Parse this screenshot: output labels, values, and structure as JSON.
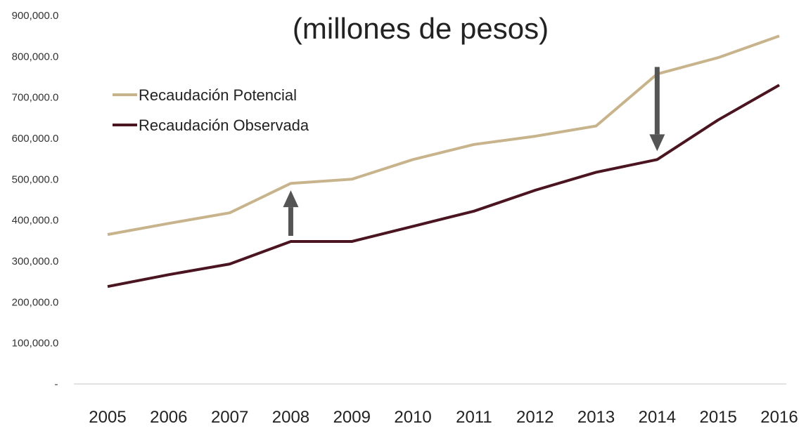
{
  "chart_data": {
    "type": "line",
    "title": "",
    "subtitle": "(millones de pesos)",
    "xlabel": "",
    "ylabel": "",
    "x": [
      "2005",
      "2006",
      "2007",
      "2008",
      "2009",
      "2010",
      "2011",
      "2012",
      "2013",
      "2014",
      "2015",
      "2016"
    ],
    "ylim": [
      0,
      900000
    ],
    "yticks": [
      0,
      100000,
      200000,
      300000,
      400000,
      500000,
      600000,
      700000,
      800000,
      900000
    ],
    "ytick_labels": [
      "-",
      "100,000.0",
      "200,000.0",
      "300,000.0",
      "400,000.0",
      "500,000.0",
      "600,000.0",
      "700,000.0",
      "800,000.0",
      "900,000.0"
    ],
    "grid": false,
    "legend_position": "top-left",
    "series": [
      {
        "name": "Recaudación Potencial",
        "color": "#c8b48c",
        "values": [
          365000,
          392000,
          418000,
          490000,
          500000,
          548000,
          585000,
          605000,
          630000,
          757000,
          797000,
          850000
        ]
      },
      {
        "name": "Recaudación Observada",
        "color": "#4a1520",
        "values": [
          238000,
          267000,
          293000,
          348000,
          348000,
          385000,
          422000,
          473000,
          517000,
          548000,
          645000,
          730000
        ]
      }
    ],
    "annotations": [
      {
        "type": "arrow",
        "x": "2008",
        "from": 348000,
        "to": 490000,
        "direction": "up",
        "color": "#555555"
      },
      {
        "type": "arrow",
        "x": "2014",
        "from": 757000,
        "to": 548000,
        "direction": "down",
        "color": "#555555"
      }
    ]
  }
}
